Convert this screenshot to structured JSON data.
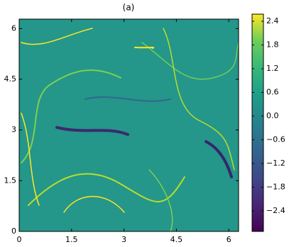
{
  "chart_data": {
    "type": "heatmap",
    "title": "(a)",
    "xlim": [
      0,
      6.28
    ],
    "ylim": [
      0,
      6.28
    ],
    "xticks": [
      0,
      1.5,
      3,
      4.5,
      6
    ],
    "yticks": [
      0,
      1.5,
      3,
      4.5,
      6
    ],
    "colormap": "viridis",
    "clim": [
      -2.92,
      2.58
    ],
    "colorbar_ticks": [
      {
        "value": -2.4,
        "label": "−2.4"
      },
      {
        "value": -1.8,
        "label": "−1.8"
      },
      {
        "value": -1.2,
        "label": "−1.2"
      },
      {
        "value": -0.6,
        "label": "−0.6"
      },
      {
        "value": 0,
        "label": "0.0"
      },
      0.6,
      1.2,
      1.8,
      2.4
    ]
  }
}
